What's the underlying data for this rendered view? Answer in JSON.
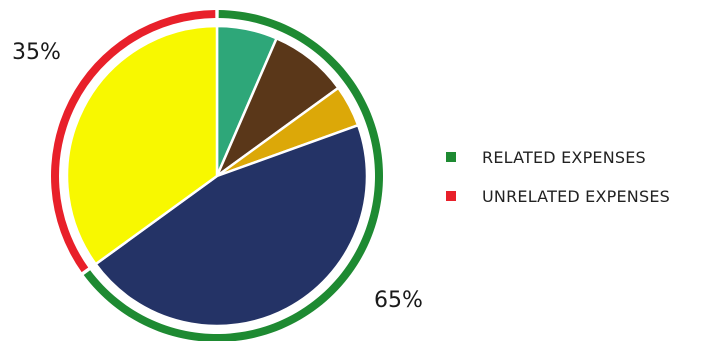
{
  "chart_data": {
    "type": "pie",
    "slices": [
      {
        "value": 6.5,
        "color": "#2ea779"
      },
      {
        "value": 8.5,
        "color": "#5a3719"
      },
      {
        "value": 4.5,
        "color": "#dca808"
      },
      {
        "value": 45.5,
        "color": "#243366"
      },
      {
        "value": 35,
        "color": "#f8f800"
      }
    ],
    "groups": [
      {
        "name": "RELATED EXPENSES",
        "value": 65,
        "label": "65%",
        "color": "#1e8a32"
      },
      {
        "name": "UNRELATED EXPENSES",
        "value": 35,
        "label": "35%",
        "color": "#e8202a"
      }
    ],
    "legend_position": "right"
  }
}
